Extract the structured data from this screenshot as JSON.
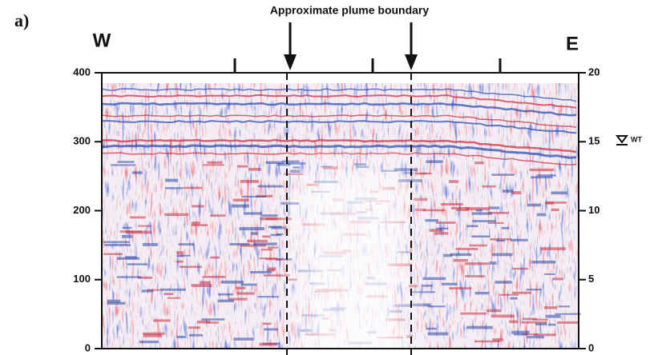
{
  "chart_data": {
    "type": "radargram",
    "panel_label": "a)",
    "title": "Approximate plume boundary",
    "left_label": "W",
    "right_label": "E",
    "water_table_label": "WT",
    "ylim": [
      0,
      400
    ],
    "yticks": [
      0,
      100,
      200,
      300,
      400
    ],
    "y2lim": [
      0,
      20
    ],
    "y2ticks": [
      0,
      5,
      10,
      15,
      20
    ]
  }
}
